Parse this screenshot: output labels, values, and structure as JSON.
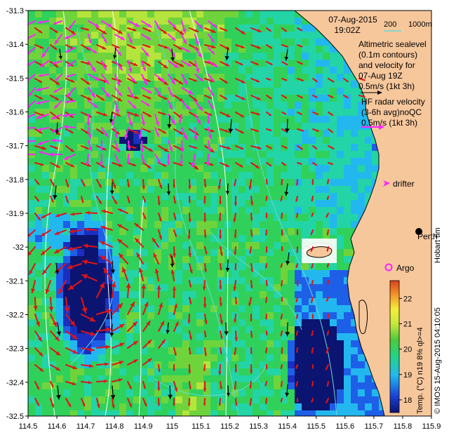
{
  "header": {
    "date": "07-Aug-2015",
    "time": "19:02Z",
    "depth_labels": [
      "200",
      "1000m"
    ]
  },
  "legend": {
    "altimetry_text": [
      "Altimetric sealevel",
      "(0.1m contours)",
      "and velocity for",
      "07-Aug 19Z",
      "0.5m/s (1kt 3h)"
    ],
    "radar_text": [
      "HF radar velocity",
      "(3-6h avg)noQC",
      "0.5m/s (1kt 3h)"
    ],
    "drifter_label": "drifter",
    "argo_label": "Argo",
    "city_label": "Perth",
    "hobart_text": "Hobart tim",
    "credit_text": "© IMOS 15-Aug-2015 04:10:05",
    "colorbar_title": "Temp. (°C) n19 8% ql>=4",
    "colorbar_ticks": [
      "22",
      "21",
      "20",
      "19",
      "18"
    ]
  },
  "axes": {
    "x_ticks": [
      "114.5",
      "114.6",
      "114.7",
      "114.8",
      "114.9",
      "115",
      "115.1",
      "115.2",
      "115.3",
      "115.4",
      "115.5",
      "115.6",
      "115.7",
      "115.8",
      "115.9"
    ],
    "y_ticks": [
      "-31.3",
      "-31.4",
      "-31.5",
      "-31.6",
      "-31.7",
      "-31.8",
      "-31.9",
      "-32",
      "-32.1",
      "-32.2",
      "-32.3",
      "-32.4",
      "-32.5"
    ]
  },
  "map_extent": {
    "lon": [
      114.5,
      115.9
    ],
    "lat": [
      -32.5,
      -31.3
    ]
  },
  "colorbar_range_c": [
    17.5,
    22.7
  ],
  "colors": {
    "land": "#f7c79c",
    "coast": "#000000",
    "altimetry_vectors": "#e11414",
    "radar_vectors": "#ff22ff",
    "shelf_contour": "#67d8d8",
    "grid_contour": "#ffffff"
  },
  "locations": {
    "perth": {
      "lon": 115.86,
      "lat": -31.95
    },
    "argo": {
      "lon": 115.745,
      "lat": -32.08
    }
  }
}
